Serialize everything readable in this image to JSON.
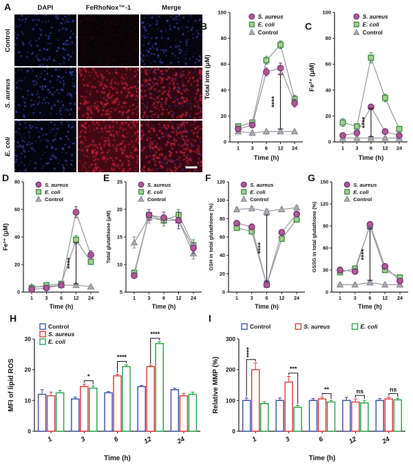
{
  "panel_a": {
    "label": "A",
    "columns": [
      "DAPI",
      "FeRhoNox™-1",
      "Merge"
    ],
    "rows": [
      "Control",
      "S. aureus",
      "E. coli"
    ]
  },
  "colors": {
    "s_aureus_fill": "#b25a90",
    "s_aureus_edge": "#71357a",
    "e_coli_fill": "#a8cf92",
    "e_coli_edge": "#3d8a45",
    "control_fill": "#abacb2",
    "control_edge": "#84848a",
    "line": "#9b9ba1",
    "bar_control": "#3d52a8",
    "bar_s_aureus": "#e13b3b",
    "bar_e_coli": "#2aa34f",
    "axis": "#1c1c1c",
    "sig": "#2b1b2b",
    "dapi_blue": "#3746c8",
    "ferhonox_red": "#e63050"
  },
  "chart_data": [
    {
      "id": "B",
      "panel_label": "B",
      "type": "line",
      "xlabel": "Time (h)",
      "ylabel": "Total iron (μM)",
      "x": [
        1,
        3,
        6,
        12,
        24
      ],
      "ylim": [
        0,
        100
      ],
      "yticks": [
        0,
        20,
        40,
        60,
        80,
        100
      ],
      "series": [
        {
          "name": "S. aureus",
          "italic": true,
          "marker": "circle",
          "fill": "#b25a90",
          "edge": "#71357a",
          "values": [
            10,
            13,
            54,
            57,
            30
          ],
          "err": [
            2,
            2,
            3,
            4,
            3
          ]
        },
        {
          "name": "E. coli",
          "italic": true,
          "marker": "square",
          "fill": "#a8cf92",
          "edge": "#3d8a45",
          "values": [
            12,
            15,
            63,
            75,
            33
          ],
          "err": [
            2,
            2,
            3,
            3,
            3
          ]
        },
        {
          "name": "Control",
          "italic": false,
          "marker": "triangle",
          "fill": "#abacb2",
          "edge": "#84848a",
          "values": [
            8,
            7,
            8,
            8,
            8
          ],
          "err": [
            1,
            1,
            1,
            1,
            1
          ]
        }
      ],
      "sig": [
        {
          "x_index": 3,
          "y_from": 10,
          "y_to": 52,
          "label": "****"
        }
      ]
    },
    {
      "id": "C",
      "panel_label": "C",
      "type": "line",
      "xlabel": "Time (h)",
      "ylabel": "Fe²⁺ (μM)",
      "x": [
        1,
        3,
        6,
        12,
        24
      ],
      "ylim": [
        0,
        100
      ],
      "yticks": [
        0,
        20,
        40,
        60,
        80,
        100
      ],
      "series": [
        {
          "name": "S. aureus",
          "italic": true,
          "marker": "circle",
          "fill": "#b25a90",
          "edge": "#71357a",
          "values": [
            5,
            7,
            27,
            8,
            5
          ],
          "err": [
            1,
            1,
            2,
            1,
            1
          ]
        },
        {
          "name": "E. coli",
          "italic": true,
          "marker": "square",
          "fill": "#a8cf92",
          "edge": "#3d8a45",
          "values": [
            15,
            12,
            65,
            34,
            10
          ],
          "err": [
            3,
            2,
            4,
            3,
            2
          ]
        },
        {
          "name": "Control",
          "italic": false,
          "marker": "triangle",
          "fill": "#abacb2",
          "edge": "#84848a",
          "values": [
            3,
            3,
            3,
            3,
            3
          ],
          "err": [
            1,
            1,
            1,
            1,
            1
          ]
        }
      ],
      "sig": [
        {
          "x_index": 2,
          "y_from": 4,
          "y_to": 26,
          "label": "****"
        }
      ]
    },
    {
      "id": "D",
      "panel_label": "D",
      "type": "line",
      "xlabel": "Time (h)",
      "ylabel": "Fe³⁺ (μM)",
      "x": [
        1,
        3,
        6,
        12,
        24
      ],
      "ylim": [
        0,
        80
      ],
      "yticks": [
        0,
        20,
        40,
        60,
        80
      ],
      "series": [
        {
          "name": "S. aureus",
          "italic": true,
          "marker": "circle",
          "fill": "#b25a90",
          "edge": "#71357a",
          "values": [
            2,
            3,
            5,
            58,
            27
          ],
          "err": [
            1,
            1,
            1,
            4,
            3
          ]
        },
        {
          "name": "E. coli",
          "italic": true,
          "marker": "square",
          "fill": "#a8cf92",
          "edge": "#3d8a45",
          "values": [
            3,
            5,
            6,
            38,
            22
          ],
          "err": [
            1,
            1,
            1,
            3,
            2
          ]
        },
        {
          "name": "Control",
          "italic": false,
          "marker": "triangle",
          "fill": "#abacb2",
          "edge": "#84848a",
          "values": [
            4,
            4,
            5,
            5,
            4
          ],
          "err": [
            1,
            1,
            1,
            1,
            1
          ]
        }
      ],
      "sig": [
        {
          "x_index": 3,
          "y_from": 6,
          "y_to": 36,
          "label": "****"
        }
      ]
    },
    {
      "id": "E",
      "panel_label": "E",
      "type": "line",
      "xlabel": "Time (h)",
      "ylabel": "Total glutathione (μM)",
      "x": [
        1,
        3,
        6,
        12,
        24
      ],
      "ylim": [
        5,
        25
      ],
      "yticks": [
        5,
        10,
        15,
        20,
        25
      ],
      "series": [
        {
          "name": "S. aureus",
          "italic": true,
          "marker": "circle",
          "fill": "#b25a90",
          "edge": "#71357a",
          "values": [
            8,
            19,
            18.5,
            18,
            13
          ],
          "err": [
            0.5,
            1,
            1,
            1.5,
            1
          ]
        },
        {
          "name": "E. coli",
          "italic": true,
          "marker": "square",
          "fill": "#a8cf92",
          "edge": "#3d8a45",
          "values": [
            8.5,
            19,
            18,
            19,
            13.5
          ],
          "err": [
            0.5,
            1,
            1,
            1,
            1
          ]
        },
        {
          "name": "Control",
          "italic": false,
          "marker": "triangle",
          "fill": "#abacb2",
          "edge": "#84848a",
          "values": [
            14,
            18.5,
            18,
            18,
            12
          ],
          "err": [
            1,
            1,
            1,
            1,
            1
          ]
        }
      ],
      "sig": []
    },
    {
      "id": "F",
      "panel_label": "F",
      "type": "line",
      "xlabel": "Time (h)",
      "ylabel": "GSH in total glutathione (%)",
      "x": [
        1,
        3,
        6,
        12,
        24
      ],
      "ylim": [
        0,
        120
      ],
      "yticks": [
        0,
        20,
        40,
        60,
        80,
        100,
        120
      ],
      "series": [
        {
          "name": "S. aureus",
          "italic": true,
          "marker": "circle",
          "fill": "#b25a90",
          "edge": "#71357a",
          "values": [
            75,
            71,
            8,
            65,
            85
          ],
          "err": [
            3,
            3,
            2,
            3,
            3
          ]
        },
        {
          "name": "E. coli",
          "italic": true,
          "marker": "square",
          "fill": "#a8cf92",
          "edge": "#3d8a45",
          "values": [
            70,
            66,
            8,
            58,
            79
          ],
          "err": [
            3,
            3,
            2,
            3,
            3
          ]
        },
        {
          "name": "Control",
          "italic": false,
          "marker": "triangle",
          "fill": "#abacb2",
          "edge": "#84848a",
          "values": [
            90,
            91,
            88,
            90,
            92
          ],
          "err": [
            2,
            2,
            2,
            2,
            2
          ]
        }
      ],
      "sig": [
        {
          "x_index": 2,
          "y_from": 12,
          "y_to": 84,
          "label": "****"
        }
      ]
    },
    {
      "id": "G",
      "panel_label": "G",
      "type": "line",
      "xlabel": "Time (h)",
      "ylabel": "GSSG in total glutathione (%)",
      "x": [
        1,
        3,
        6,
        12,
        24
      ],
      "ylim": [
        0,
        150
      ],
      "yticks": [
        0,
        30,
        60,
        90,
        120,
        150
      ],
      "series": [
        {
          "name": "S. aureus",
          "italic": true,
          "marker": "circle",
          "fill": "#b25a90",
          "edge": "#71357a",
          "values": [
            30,
            28,
            92,
            35,
            15
          ],
          "err": [
            4,
            3,
            4,
            3,
            2
          ]
        },
        {
          "name": "E. coli",
          "italic": true,
          "marker": "square",
          "fill": "#a8cf92",
          "edge": "#3d8a45",
          "values": [
            27,
            32,
            90,
            30,
            20
          ],
          "err": [
            3,
            3,
            4,
            3,
            2
          ]
        },
        {
          "name": "Control",
          "italic": false,
          "marker": "triangle",
          "fill": "#abacb2",
          "edge": "#84848a",
          "values": [
            10,
            10,
            13,
            10,
            10
          ],
          "err": [
            2,
            2,
            2,
            2,
            2
          ]
        }
      ],
      "sig": [
        {
          "x_index": 2,
          "y_from": 16,
          "y_to": 86,
          "label": "****"
        }
      ]
    },
    {
      "id": "H",
      "panel_label": "H",
      "type": "bar",
      "legend_layout": "vertical",
      "xlabel": "Time (h)",
      "ylabel": "MFI of lipid ROS",
      "categories": [
        "1",
        "3",
        "6",
        "12",
        "24"
      ],
      "ylim": [
        0,
        30
      ],
      "yticks": [
        0,
        10,
        20,
        30
      ],
      "series": [
        {
          "name": "Control",
          "italic": false,
          "color": "#3d52a8",
          "values": [
            12,
            10.5,
            12.5,
            14.5,
            13.5
          ],
          "err": [
            1.5,
            0.6,
            0.4,
            0.4,
            0.5
          ]
        },
        {
          "name": "S. aureus",
          "italic": true,
          "color": "#e13b3b",
          "values": [
            11.5,
            14.5,
            18,
            21,
            11.5
          ],
          "err": [
            1.2,
            0.8,
            0.5,
            0.5,
            0.8
          ]
        },
        {
          "name": "E. coli",
          "italic": true,
          "color": "#2aa34f",
          "values": [
            12.5,
            14,
            21,
            28.5,
            12
          ],
          "err": [
            0.8,
            0.7,
            0.6,
            0.6,
            0.7
          ]
        }
      ],
      "sig": [
        {
          "group": 1,
          "from": 1,
          "to": 2,
          "label": "*"
        },
        {
          "group": 2,
          "from": 1,
          "to": 2,
          "label": "****"
        },
        {
          "group": 3,
          "from": 1,
          "to": 2,
          "label": "****"
        }
      ]
    },
    {
      "id": "I",
      "panel_label": "I",
      "type": "bar",
      "legend_layout": "horizontal",
      "xlabel": "Time (h)",
      "ylabel": "Relative MMP (%)",
      "categories": [
        "1",
        "3",
        "6",
        "12",
        "24"
      ],
      "ylim": [
        0,
        300
      ],
      "yticks": [
        0,
        100,
        200,
        300
      ],
      "series": [
        {
          "name": "Control",
          "italic": false,
          "color": "#3d52a8",
          "values": [
            100,
            100,
            100,
            100,
            100
          ],
          "err": [
            8,
            8,
            6,
            10,
            6
          ]
        },
        {
          "name": "S. aureus",
          "italic": true,
          "color": "#e13b3b",
          "values": [
            200,
            160,
            105,
            95,
            105
          ],
          "err": [
            22,
            18,
            6,
            10,
            6
          ]
        },
        {
          "name": "E. coli",
          "italic": true,
          "color": "#2aa34f",
          "values": [
            90,
            78,
            95,
            92,
            102
          ],
          "err": [
            6,
            6,
            5,
            8,
            5
          ]
        }
      ],
      "sig": [
        {
          "group": 0,
          "from": 0,
          "to": 1,
          "label": "****",
          "rotate": true
        },
        {
          "group": 1,
          "from": 1,
          "to": 2,
          "label": "***"
        },
        {
          "group": 2,
          "from": 1,
          "to": 2,
          "label": "**"
        },
        {
          "group": 3,
          "from": 1,
          "to": 2,
          "label": "ns"
        },
        {
          "group": 4,
          "from": 1,
          "to": 2,
          "label": "ns"
        }
      ]
    }
  ]
}
